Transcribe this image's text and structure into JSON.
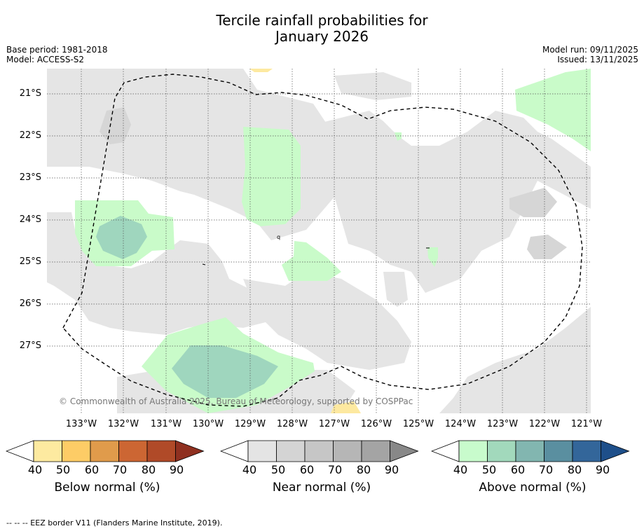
{
  "title_line1": "Tercile rainfall probabilities for",
  "title_line2": "January 2026",
  "base_period": "Base period: 1981-2018",
  "model": "Model: ACCESS-S2",
  "model_run": "Model run: 09/11/2025",
  "issued": "Issued: 13/11/2025",
  "copyright": "© Commonwealth of Australia 2025, Bureau of Meteorology, supported by COSPPac",
  "footer": "--  --  -- EEZ border V11 (Flanders Marine Institute, 2019).",
  "lat_labels": [
    "21°S",
    "22°S",
    "23°S",
    "24°S",
    "25°S",
    "26°S",
    "27°S"
  ],
  "lon_labels": [
    "133°W",
    "132°W",
    "131°W",
    "130°W",
    "129°W",
    "128°W",
    "127°W",
    "126°W",
    "125°W",
    "124°W",
    "123°W",
    "122°W",
    "121°W"
  ],
  "colorbars": {
    "below": {
      "title": "Below normal (%)",
      "ticks": [
        "40",
        "50",
        "60",
        "70",
        "80",
        "90"
      ],
      "colors": [
        "#ffffff",
        "#fdeaa0",
        "#fdcc66",
        "#e09b4b",
        "#cc6633",
        "#b04a28",
        "#8f3020"
      ]
    },
    "near": {
      "title": "Near normal (%)",
      "ticks": [
        "40",
        "50",
        "60",
        "70",
        "80",
        "90"
      ],
      "colors": [
        "#ffffff",
        "#e4e4e4",
        "#d4d4d4",
        "#c6c6c6",
        "#b6b6b6",
        "#a4a4a4",
        "#888888"
      ]
    },
    "above": {
      "title": "Above normal (%)",
      "ticks": [
        "40",
        "50",
        "60",
        "70",
        "80",
        "90"
      ],
      "colors": [
        "#ffffff",
        "#c8fbcc",
        "#a2d9bc",
        "#82b6b0",
        "#5a8fa0",
        "#33669a",
        "#1e4f8a"
      ]
    }
  },
  "map_colors": {
    "near_50": "#e5e5e5",
    "near_60": "#d6d6d6",
    "above_50": "#c9fbc9",
    "above_60": "#9fd6be",
    "below_50": "#fde9a0",
    "grid": "#555555",
    "eez": "#000000"
  }
}
